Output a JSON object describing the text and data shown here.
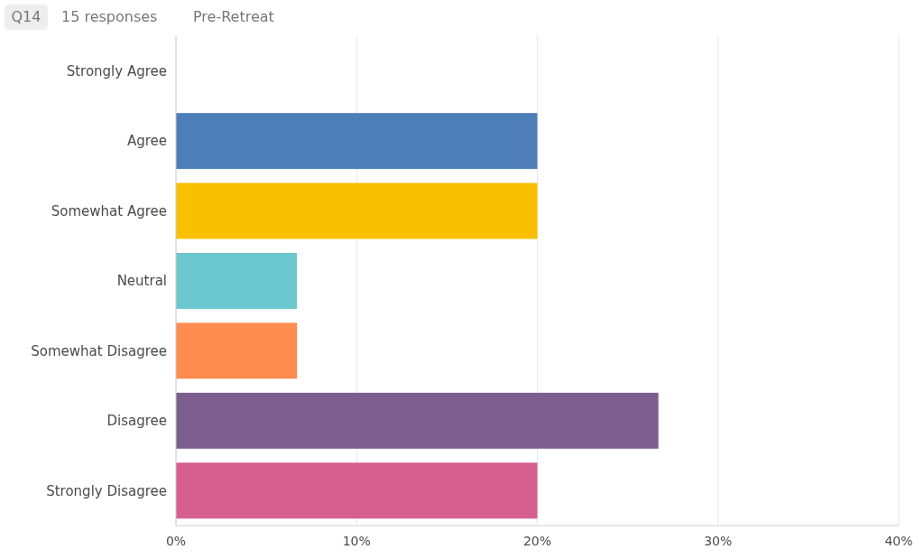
{
  "chart_data": {
    "type": "bar",
    "orientation": "horizontal",
    "title": "Q14",
    "subtitle": "15 responses",
    "annotations": [
      "Pre-Retreat"
    ],
    "categories": [
      "Strongly Agree",
      "Agree",
      "Somewhat Agree",
      "Neutral",
      "Somewhat Disagree",
      "Disagree",
      "Strongly Disagree"
    ],
    "values": [
      0,
      20,
      20,
      6.7,
      6.7,
      26.7,
      20
    ],
    "colors": [
      "#3aa0d8",
      "#4e7eb8",
      "#f9c002",
      "#6bc8cf",
      "#ff8c50",
      "#7d5f8f",
      "#d65f8f"
    ],
    "xlim": [
      0,
      40
    ],
    "xticks": [
      {
        "value": 0,
        "label": "0%"
      },
      {
        "value": 10,
        "label": "10%"
      },
      {
        "value": 20,
        "label": "20%"
      },
      {
        "value": 30,
        "label": "30%"
      },
      {
        "value": 40,
        "label": "40%"
      }
    ],
    "grid": "x"
  }
}
